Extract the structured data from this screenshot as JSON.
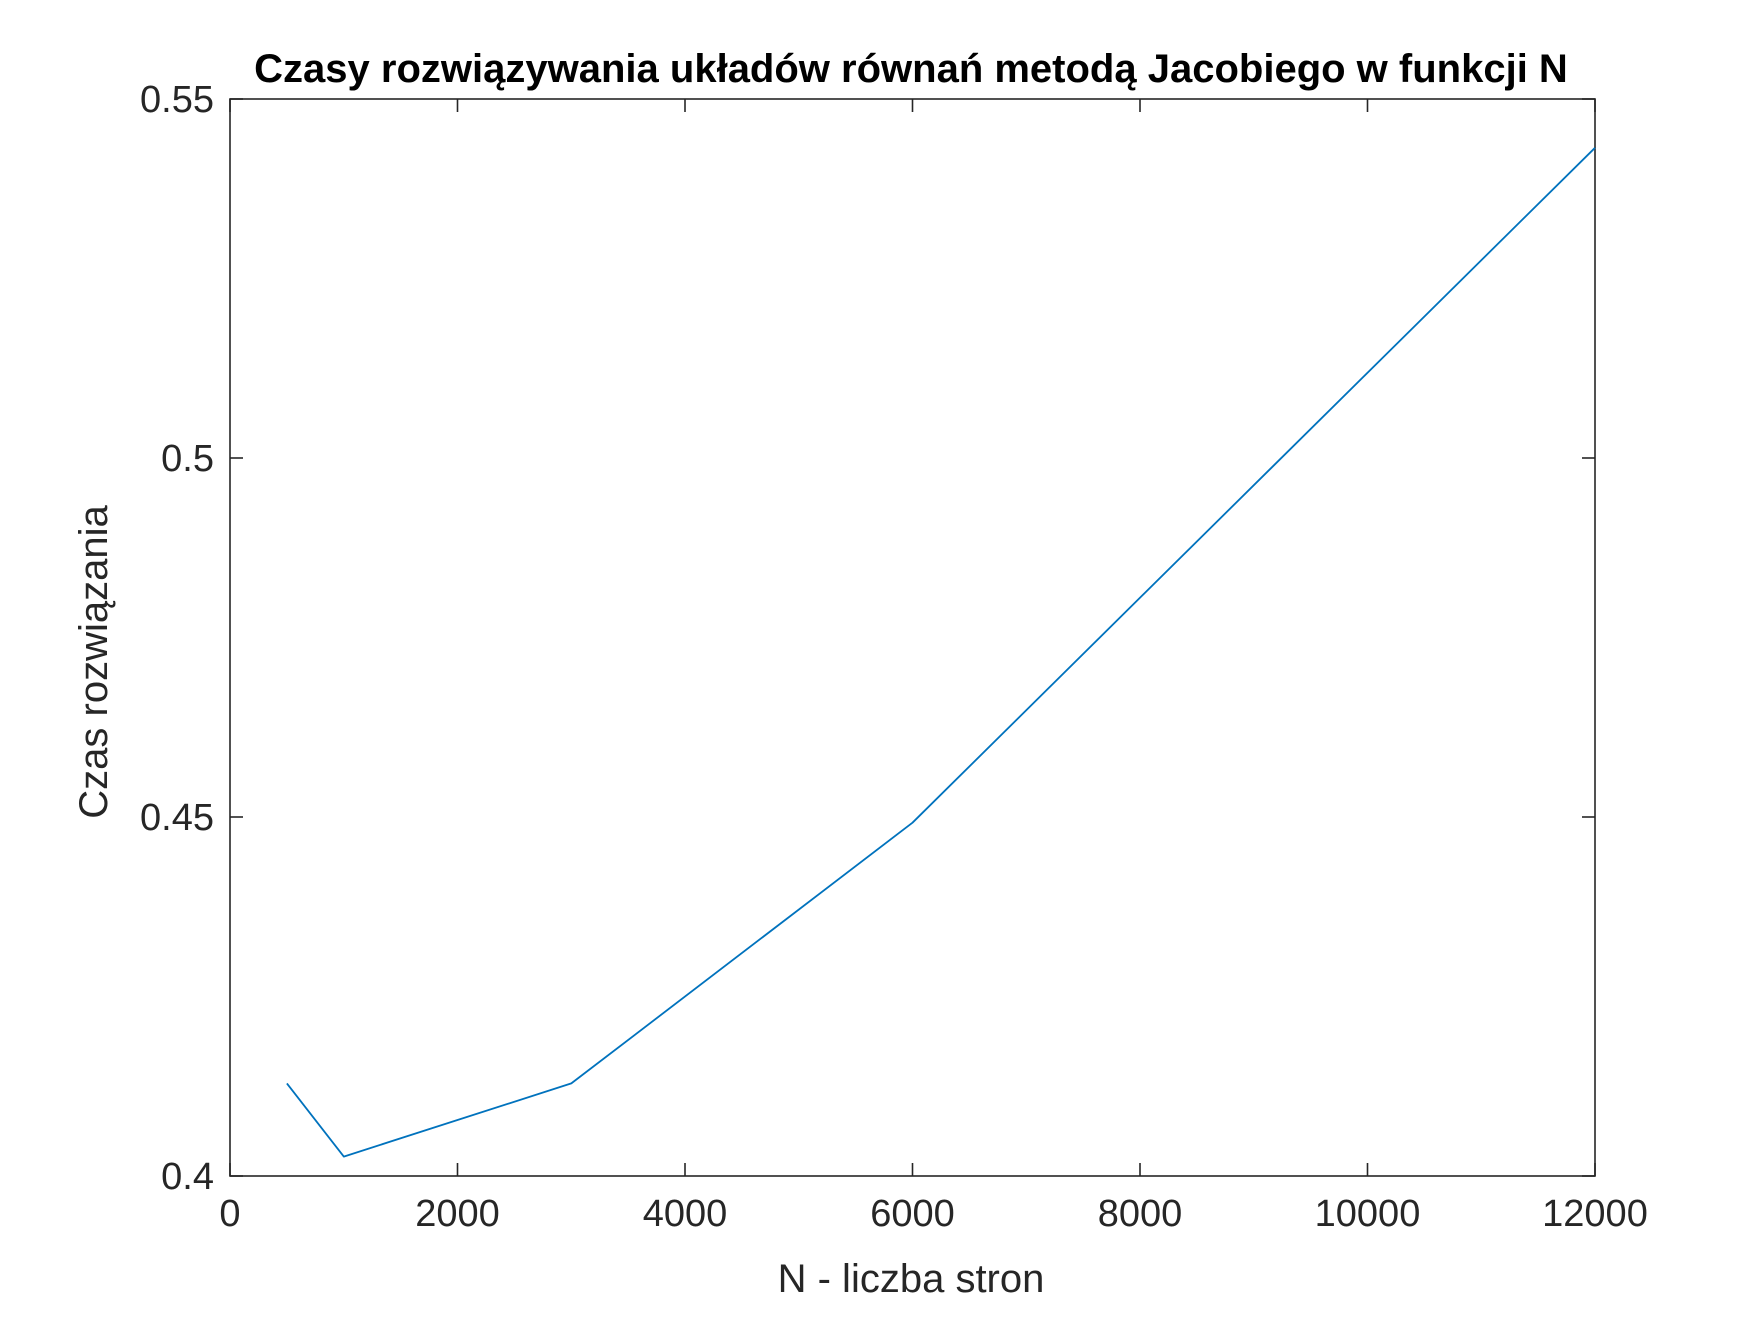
{
  "chart_data": {
    "type": "line",
    "title": "Czasy rozwiązywania układów równań metodą Jacobiego w funkcji N",
    "xlabel": "N - liczba stron",
    "ylabel": "Czas rozwiązania",
    "xlim": [
      0,
      12000
    ],
    "ylim": [
      0.4,
      0.55
    ],
    "xticks": [
      0,
      2000,
      4000,
      6000,
      8000,
      10000,
      12000
    ],
    "xtick_labels": [
      "0",
      "2000",
      "4000",
      "6000",
      "8000",
      "10000",
      "12000"
    ],
    "yticks": [
      0.4,
      0.45,
      0.5,
      0.55
    ],
    "ytick_labels": [
      "0.4",
      "0.45",
      "0.5",
      "0.55"
    ],
    "grid": false,
    "series": [
      {
        "color": "#0072BD",
        "x": [
          500,
          1000,
          3000,
          6000,
          12000
        ],
        "y": [
          0.4129,
          0.4027,
          0.4129,
          0.4492,
          0.5432
        ]
      }
    ]
  }
}
